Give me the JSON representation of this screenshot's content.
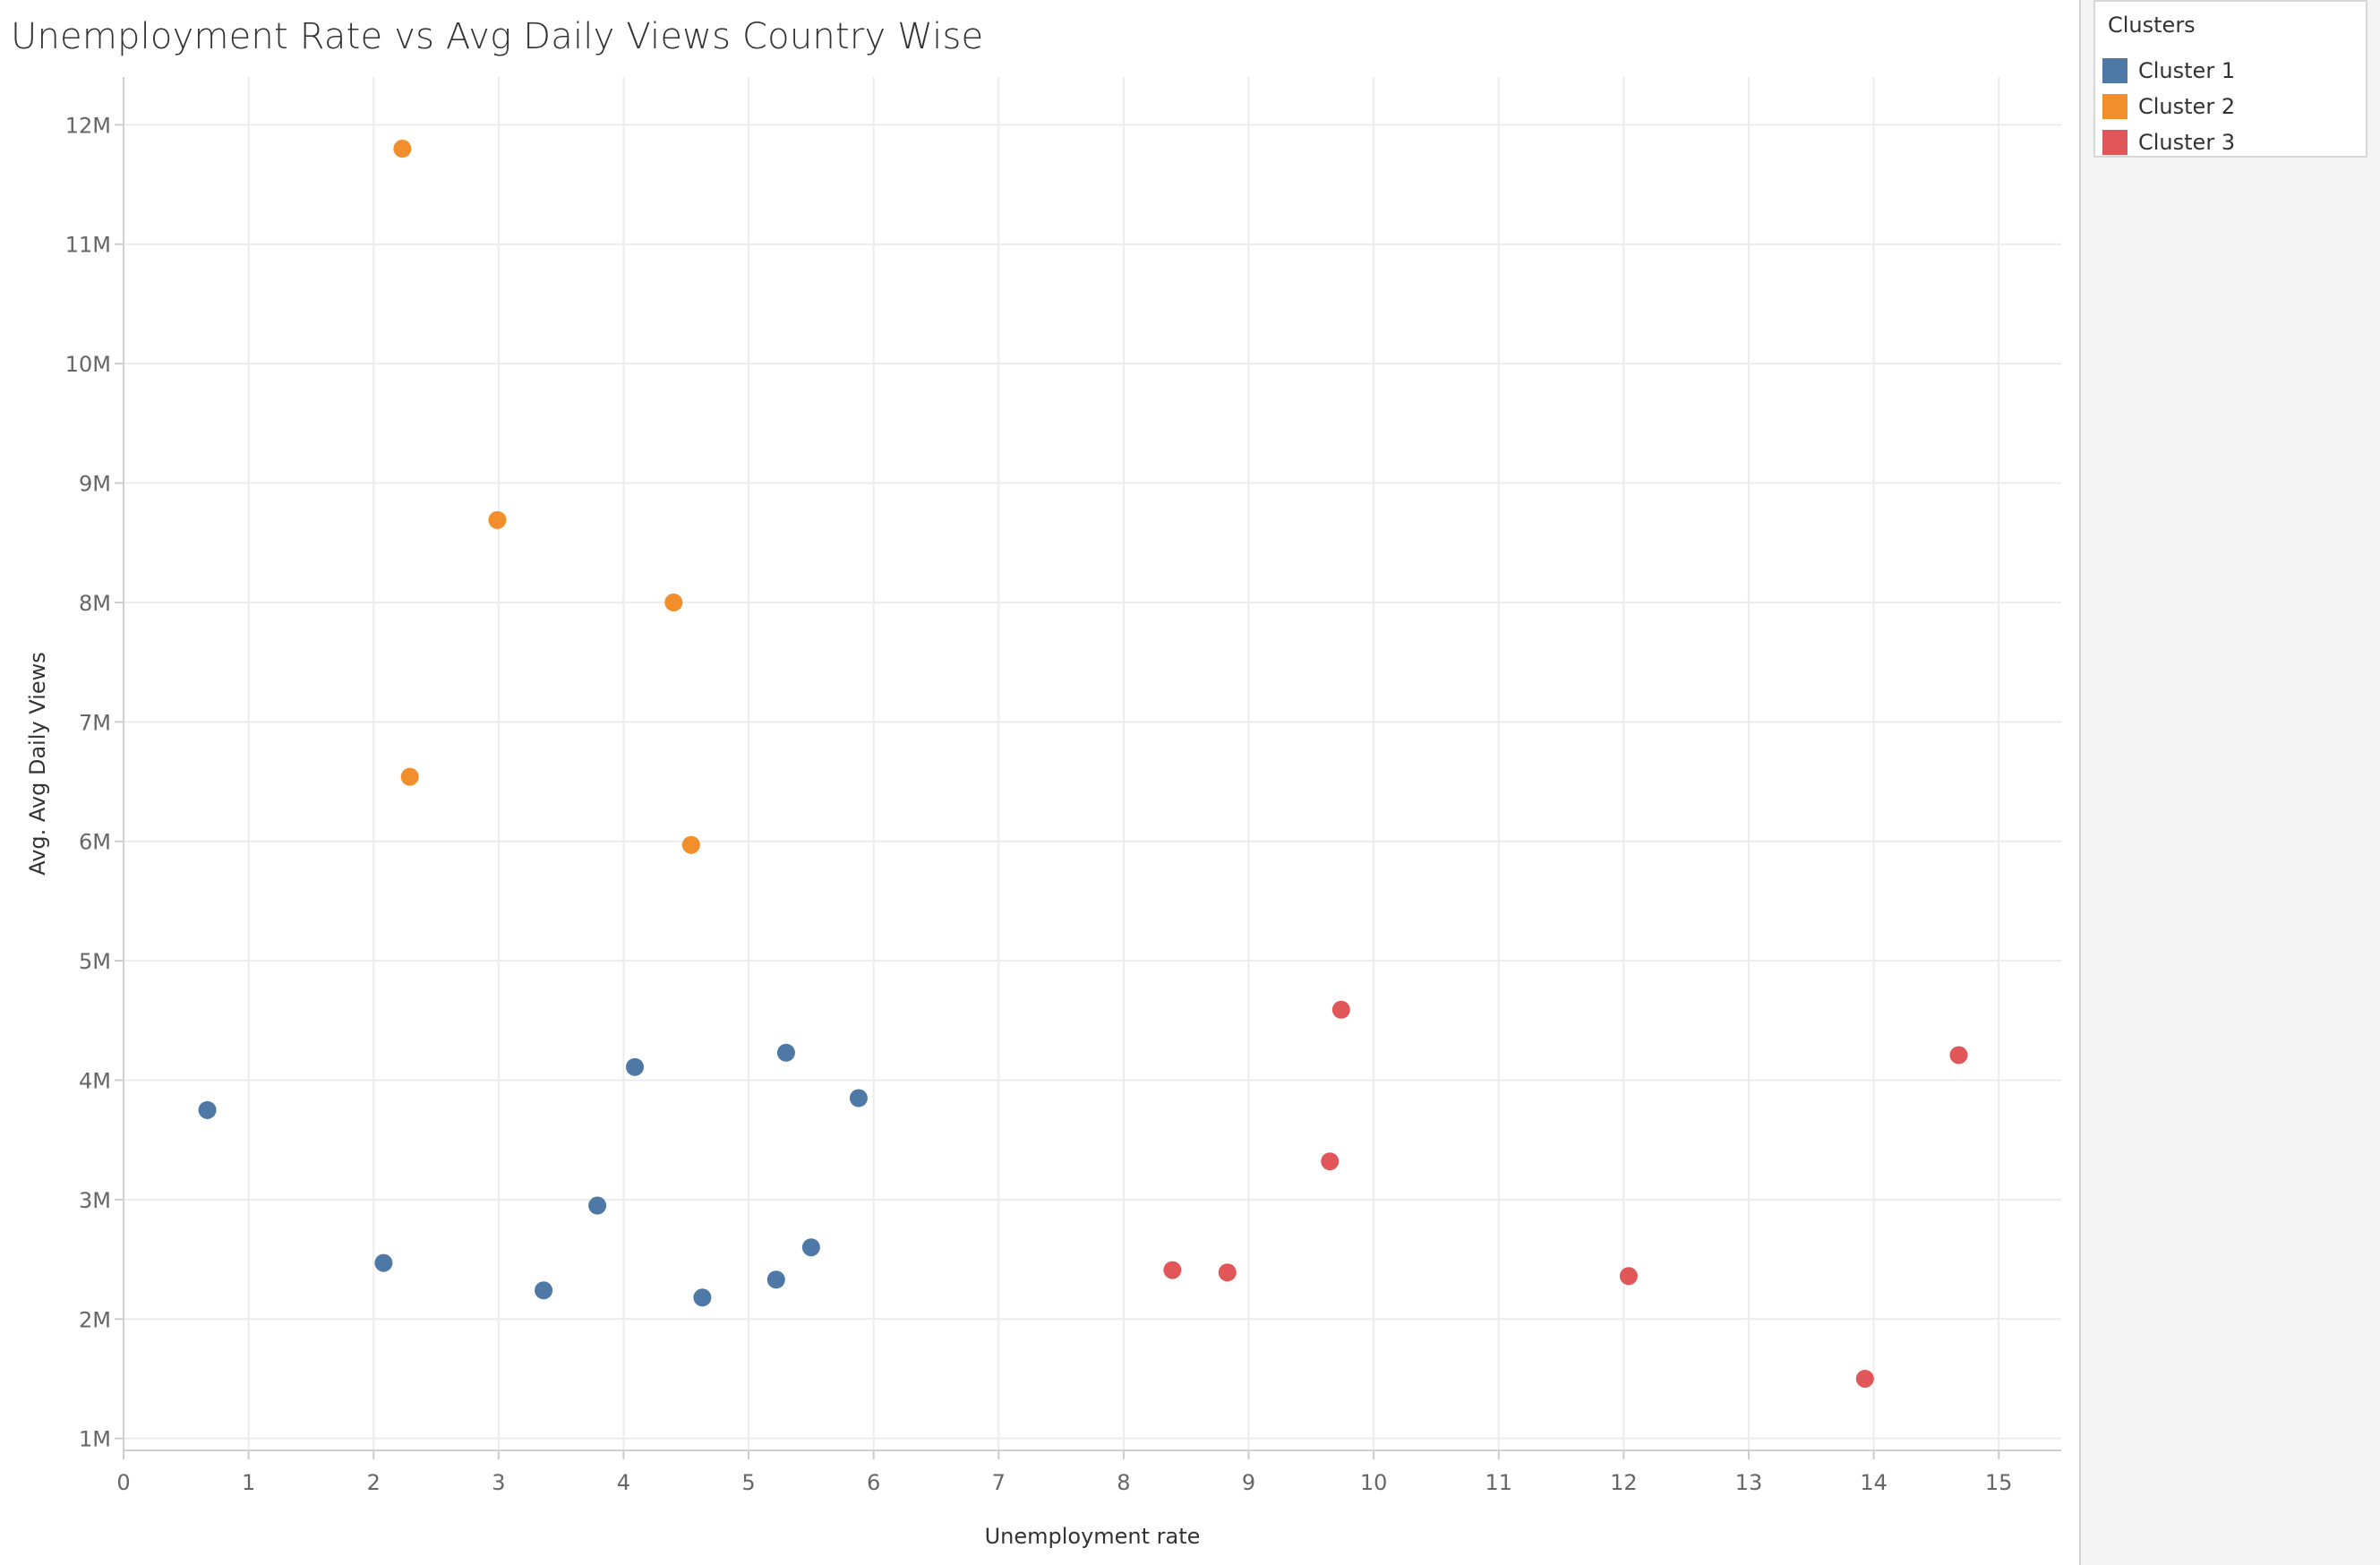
{
  "chart_data": {
    "type": "scatter",
    "title": "Unemployment Rate vs Avg Daily Views Country Wise",
    "xlabel": "Unemployment rate",
    "ylabel": "Avg. Avg Daily Views",
    "xlim": [
      0,
      15.5
    ],
    "ylim": [
      0.9,
      12.4
    ],
    "x_ticks": [
      0,
      1,
      2,
      3,
      4,
      5,
      6,
      7,
      8,
      9,
      10,
      11,
      12,
      13,
      14,
      15
    ],
    "y_ticks": [
      1,
      2,
      3,
      4,
      5,
      6,
      7,
      8,
      9,
      10,
      11,
      12
    ],
    "y_tick_labels": [
      "1M",
      "2M",
      "3M",
      "4M",
      "5M",
      "6M",
      "7M",
      "8M",
      "9M",
      "10M",
      "11M",
      "12M"
    ],
    "y_unit": "millions of views",
    "grid": true,
    "legend": {
      "title": "Clusters",
      "placement": "top-right"
    },
    "series": [
      {
        "name": "Cluster 1",
        "color": "#4e79a7",
        "points": [
          {
            "x": 0.67,
            "y": 3.75
          },
          {
            "x": 2.08,
            "y": 2.47
          },
          {
            "x": 3.36,
            "y": 2.24
          },
          {
            "x": 3.79,
            "y": 2.95
          },
          {
            "x": 4.09,
            "y": 4.11
          },
          {
            "x": 4.63,
            "y": 2.18
          },
          {
            "x": 5.22,
            "y": 2.33
          },
          {
            "x": 5.3,
            "y": 4.23
          },
          {
            "x": 5.5,
            "y": 2.6
          },
          {
            "x": 5.88,
            "y": 3.85
          }
        ]
      },
      {
        "name": "Cluster 2",
        "color": "#f28e2b",
        "points": [
          {
            "x": 2.23,
            "y": 11.8
          },
          {
            "x": 2.29,
            "y": 6.54
          },
          {
            "x": 2.99,
            "y": 8.69
          },
          {
            "x": 4.4,
            "y": 8.0
          },
          {
            "x": 4.54,
            "y": 5.97
          }
        ]
      },
      {
        "name": "Cluster 3",
        "color": "#e15759",
        "points": [
          {
            "x": 8.39,
            "y": 2.41
          },
          {
            "x": 8.83,
            "y": 2.39
          },
          {
            "x": 9.65,
            "y": 3.32
          },
          {
            "x": 9.74,
            "y": 4.59
          },
          {
            "x": 12.04,
            "y": 2.36
          },
          {
            "x": 13.93,
            "y": 1.5
          },
          {
            "x": 14.68,
            "y": 4.21
          }
        ]
      }
    ]
  }
}
